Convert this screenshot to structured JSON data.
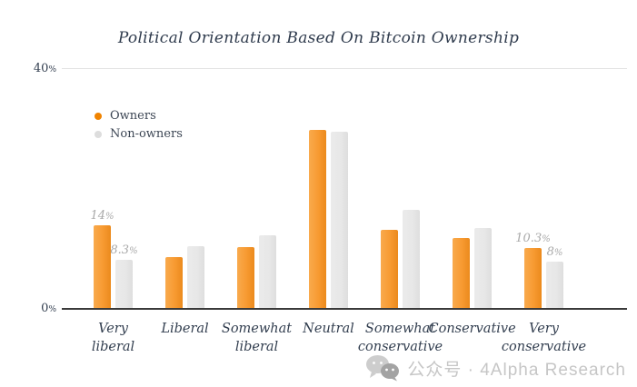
{
  "chart_data": {
    "type": "bar",
    "title": "Political Orientation Based On Bitcoin Ownership",
    "categories": [
      "Very\nliberal",
      "Liberal",
      "Somewhat\nliberal",
      "Neutral",
      "Somewhat\nconservative",
      "Conservative",
      "Very\nconservative"
    ],
    "series": [
      {
        "name": "Owners",
        "color": "#f79a31",
        "values": [
          14,
          8.8,
          10.4,
          29.8,
          13.3,
          11.9,
          10.3
        ],
        "labels": [
          {
            "v": "14",
            "s": "%"
          },
          null,
          null,
          null,
          null,
          null,
          {
            "v": "10.3",
            "s": "%"
          }
        ]
      },
      {
        "name": "Non-owners",
        "color": "#e7e7e7",
        "values": [
          8.3,
          10.6,
          12.3,
          29.5,
          16.5,
          13.6,
          8
        ],
        "labels": [
          {
            "v": "8.3",
            "s": "%"
          },
          null,
          null,
          null,
          null,
          null,
          {
            "v": "8",
            "s": "%"
          }
        ]
      }
    ],
    "ylim": [
      0,
      40
    ],
    "yticks": [
      {
        "v": "40",
        "s": "%"
      },
      {
        "v": "0",
        "s": "%"
      }
    ],
    "grid": "top-gridline-only",
    "legend_position": "upper-left-inside"
  },
  "watermark": {
    "icon": "wechat-official-account-icon",
    "text": "公众号 · 4Alpha Research"
  }
}
